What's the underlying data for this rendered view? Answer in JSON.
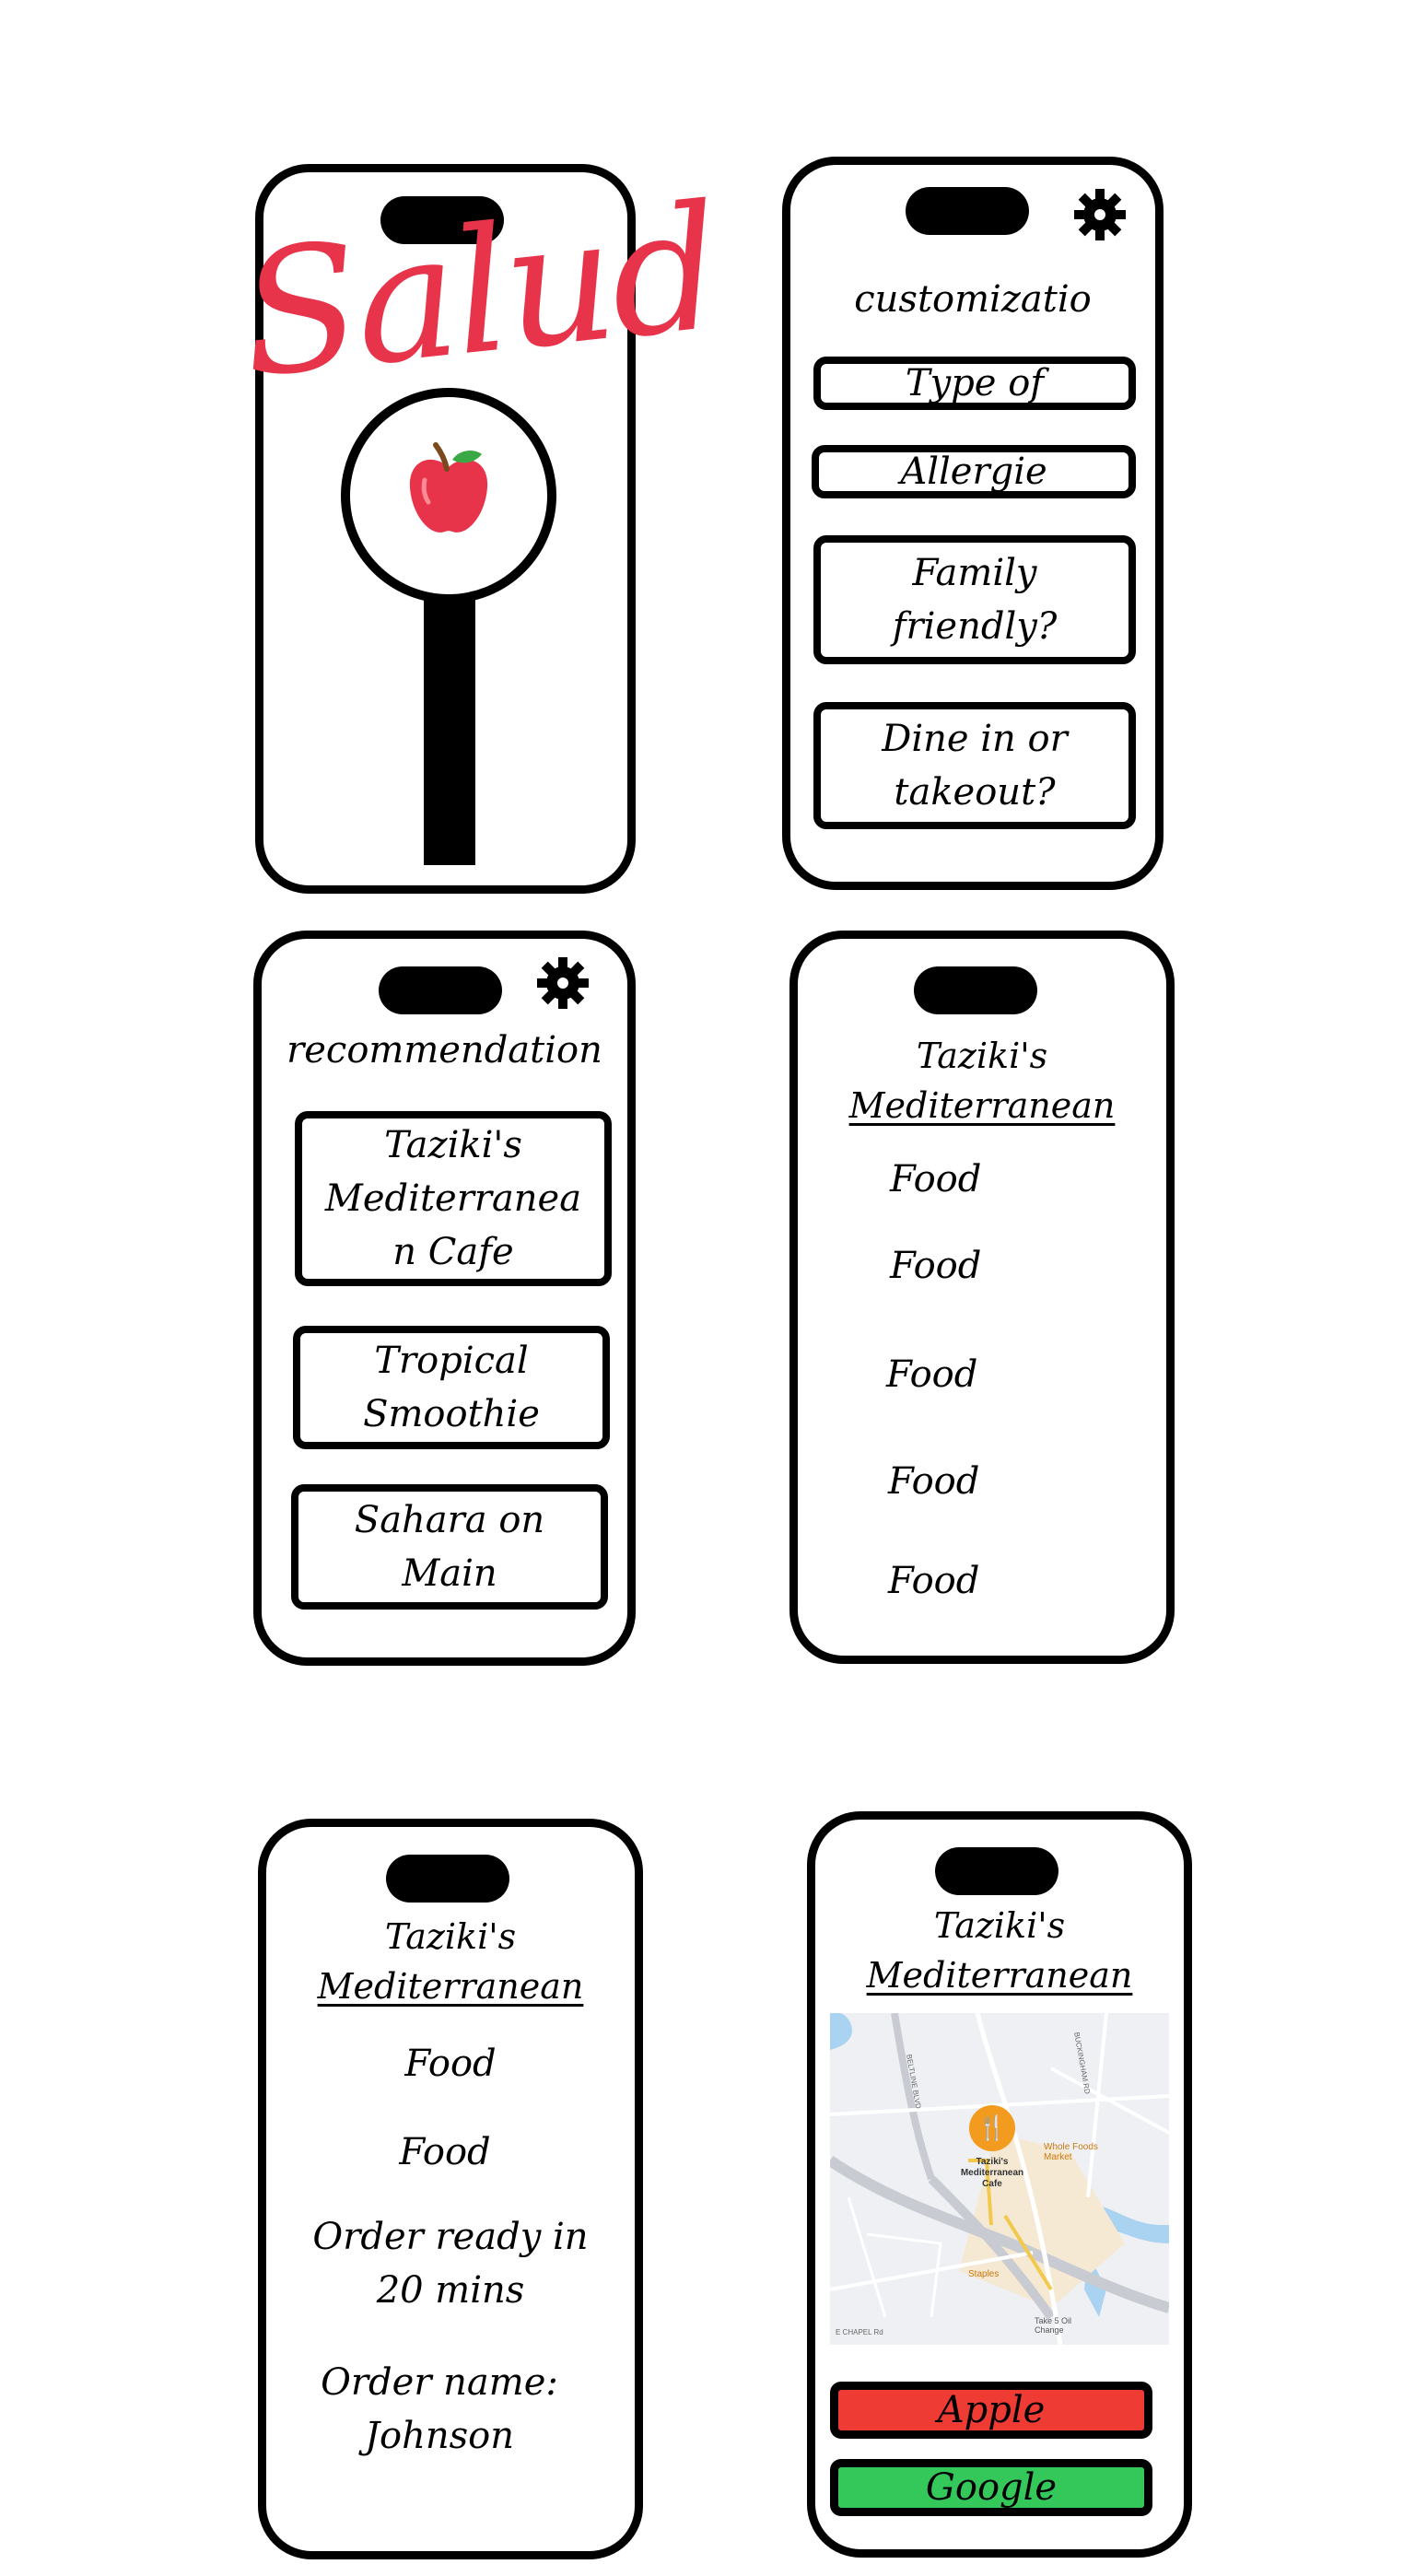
{
  "screen1": {
    "logo_text": "Salud",
    "apple_icon": "apple-icon",
    "brand_color": "#e8344a"
  },
  "screen2": {
    "title": "customizatio",
    "options": [
      "Type of",
      "Allergie",
      "Family\nfriendly?",
      "Dine in or\ntakeout?"
    ]
  },
  "screen3": {
    "title": "recommendation",
    "items": [
      "Taziki's\nMediterranea\nn Cafe",
      "Tropical\nSmoothie",
      "Sahara on\nMain"
    ]
  },
  "screen4": {
    "title_line1": "Taziki's",
    "title_line2": "Mediterranean",
    "foods": [
      "Food",
      "Food",
      "Food",
      "Food",
      "Food"
    ]
  },
  "screen5": {
    "title_line1": "Taziki's",
    "title_line2": "Mediterranean",
    "foods": [
      "Food",
      "Food"
    ],
    "order_ready": "Order ready in\n20 mins",
    "order_name": "Order name:\nJohnson"
  },
  "screen6": {
    "title_line1": "Taziki's",
    "title_line2": "Mediterranean",
    "map": {
      "pin_label": "Taziki's\nMediterranean\nCafe",
      "poi_whole_foods": "Whole Foods\nMarket",
      "poi_staples": "Staples",
      "poi_take5": "Take 5 Oil\nChange",
      "street_beltline": "BELTLINE BLVD",
      "street_chapel": "E CHAPEL Rd",
      "street_other": "BUCKINGHAM RD"
    },
    "apple_button": "Apple",
    "google_button": "Google",
    "apple_color": "#ee3b33",
    "google_color": "#34c759"
  }
}
